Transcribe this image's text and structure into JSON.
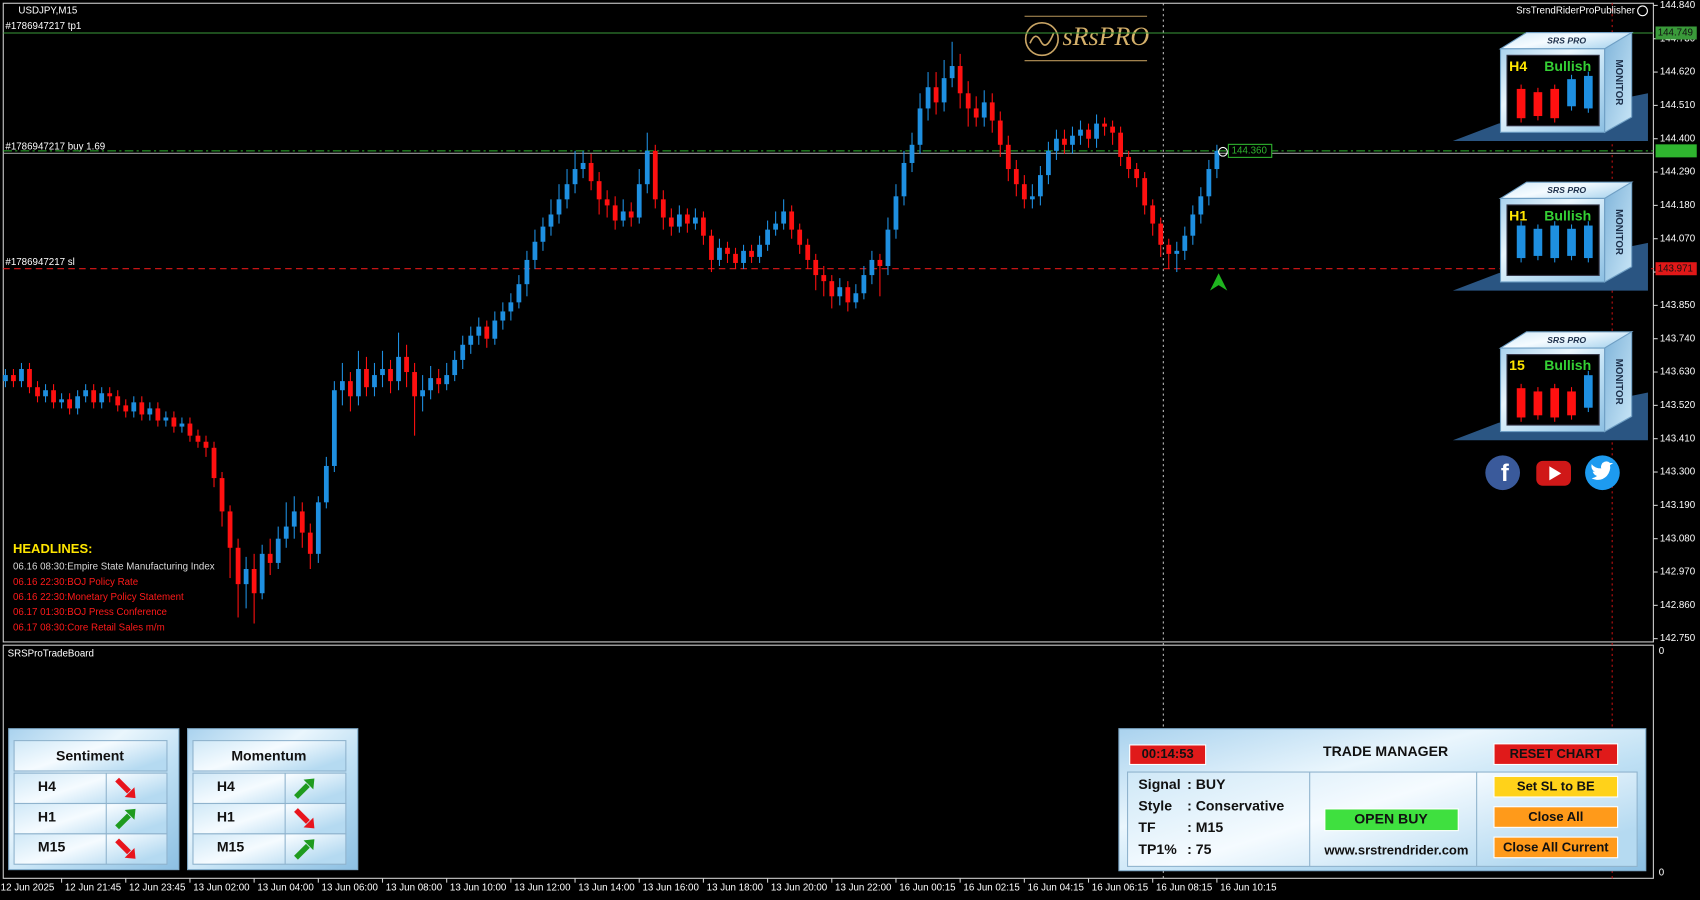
{
  "chart_data": {
    "type": "candlestick",
    "title": "USDJPY,M15",
    "colors": {
      "up": "#1e8fe0",
      "down": "#ff1010"
    },
    "ylim": [
      142.75,
      144.84
    ],
    "yticks": [
      {
        "value": 144.84,
        "label": "144.840"
      },
      {
        "value": 144.73,
        "label": "144.730"
      },
      {
        "value": 144.62,
        "label": "144.620"
      },
      {
        "value": 144.51,
        "label": "144.510"
      },
      {
        "value": 144.4,
        "label": "144.400"
      },
      {
        "value": 144.29,
        "label": "144.290"
      },
      {
        "value": 144.18,
        "label": "144.180"
      },
      {
        "value": 144.07,
        "label": "144.070"
      },
      {
        "value": 143.96,
        "label": "143.960"
      },
      {
        "value": 143.85,
        "label": "143.850"
      },
      {
        "value": 143.74,
        "label": "143.740"
      },
      {
        "value": 143.63,
        "label": "143.630"
      },
      {
        "value": 143.52,
        "label": "143.520"
      },
      {
        "value": 143.41,
        "label": "143.410"
      },
      {
        "value": 143.3,
        "label": "143.300"
      },
      {
        "value": 143.19,
        "label": "143.190"
      },
      {
        "value": 143.08,
        "label": "143.080"
      },
      {
        "value": 142.97,
        "label": "142.970"
      },
      {
        "value": 142.86,
        "label": "142.860"
      },
      {
        "value": 142.75,
        "label": "142.750"
      }
    ],
    "xticks": [
      {
        "value": -1,
        "label": "12 Jun 2025"
      },
      {
        "value": 7,
        "label": "12 Jun 21:45"
      },
      {
        "value": 15,
        "label": "12 Jun 23:45"
      },
      {
        "value": 23,
        "label": "13 Jun 02:00"
      },
      {
        "value": 31,
        "label": "13 Jun 04:00"
      },
      {
        "value": 39,
        "label": "13 Jun 06:00"
      },
      {
        "value": 47,
        "label": "13 Jun 08:00"
      },
      {
        "value": 55,
        "label": "13 Jun 10:00"
      },
      {
        "value": 63,
        "label": "13 Jun 12:00"
      },
      {
        "value": 71,
        "label": "13 Jun 14:00"
      },
      {
        "value": 79,
        "label": "13 Jun 16:00"
      },
      {
        "value": 87,
        "label": "13 Jun 18:00"
      },
      {
        "value": 95,
        "label": "13 Jun 20:00"
      },
      {
        "value": 103,
        "label": "13 Jun 22:00"
      },
      {
        "value": 111,
        "label": "16 Jun 00:15"
      },
      {
        "value": 119,
        "label": "16 Jun 02:15"
      },
      {
        "value": 127,
        "label": "16 Jun 04:15"
      },
      {
        "value": 135,
        "label": "16 Jun 06:15"
      },
      {
        "value": 143,
        "label": "16 Jun 08:15"
      },
      {
        "value": 151,
        "label": "16 Jun 10:15"
      }
    ],
    "hlines": [
      {
        "label": "#1786947217 tp1",
        "price": 144.749,
        "color": "#3a9a3a",
        "style": "solid",
        "price_tag": true
      },
      {
        "label": "#1786947217 buy 1.69",
        "price": 144.352,
        "color": "#9a9a9a",
        "style": "solid",
        "price_tag": false
      },
      {
        "label": "#1786947217 sl",
        "price": 143.971,
        "color": "#e01818",
        "style": "dashed",
        "price_tag": true
      }
    ],
    "bid": {
      "value": 144.36,
      "label": "144.360",
      "color": "#2fb52f"
    },
    "candles": [
      [
        143.6,
        143.64,
        143.58,
        143.62
      ],
      [
        143.62,
        143.64,
        143.58,
        143.6
      ],
      [
        143.6,
        143.66,
        143.58,
        143.64
      ],
      [
        143.64,
        143.66,
        143.56,
        143.58
      ],
      [
        143.58,
        143.6,
        143.53,
        143.55
      ],
      [
        143.55,
        143.59,
        143.53,
        143.57
      ],
      [
        143.57,
        143.59,
        143.51,
        143.53
      ],
      [
        143.53,
        143.56,
        143.51,
        143.54
      ],
      [
        143.54,
        143.56,
        143.49,
        143.51
      ],
      [
        143.51,
        143.57,
        143.49,
        143.55
      ],
      [
        143.55,
        143.59,
        143.53,
        143.57
      ],
      [
        143.57,
        143.59,
        143.51,
        143.53
      ],
      [
        143.53,
        143.58,
        143.51,
        143.56
      ],
      [
        143.56,
        143.58,
        143.53,
        143.55
      ],
      [
        143.55,
        143.57,
        143.5,
        143.52
      ],
      [
        143.52,
        143.54,
        143.48,
        143.5
      ],
      [
        143.5,
        143.55,
        143.48,
        143.53
      ],
      [
        143.53,
        143.55,
        143.47,
        143.49
      ],
      [
        143.49,
        143.53,
        143.47,
        143.51
      ],
      [
        143.51,
        143.53,
        143.45,
        143.47
      ],
      [
        143.47,
        143.5,
        143.45,
        143.48
      ],
      [
        143.48,
        143.5,
        143.43,
        143.45
      ],
      [
        143.45,
        143.48,
        143.43,
        143.46
      ],
      [
        143.46,
        143.48,
        143.4,
        143.42
      ],
      [
        143.42,
        143.44,
        143.38,
        143.4
      ],
      [
        143.4,
        143.42,
        143.35,
        143.38
      ],
      [
        143.38,
        143.4,
        143.25,
        143.28
      ],
      [
        143.28,
        143.3,
        143.12,
        143.17
      ],
      [
        143.17,
        143.19,
        142.95,
        143.05
      ],
      [
        143.05,
        143.08,
        142.82,
        142.93
      ],
      [
        142.93,
        143.02,
        142.85,
        142.98
      ],
      [
        142.98,
        143.03,
        142.8,
        142.9
      ],
      [
        142.9,
        143.06,
        142.88,
        143.03
      ],
      [
        143.03,
        143.08,
        142.96,
        143.0
      ],
      [
        143.0,
        143.12,
        142.98,
        143.08
      ],
      [
        143.08,
        143.2,
        143.05,
        143.12
      ],
      [
        143.12,
        143.22,
        143.08,
        143.17
      ],
      [
        143.17,
        143.2,
        143.05,
        143.1
      ],
      [
        143.1,
        143.13,
        142.98,
        143.03
      ],
      [
        143.03,
        143.22,
        143.0,
        143.2
      ],
      [
        143.2,
        143.35,
        143.18,
        143.32
      ],
      [
        143.32,
        143.6,
        143.3,
        143.57
      ],
      [
        143.57,
        143.66,
        143.52,
        143.6
      ],
      [
        143.6,
        143.63,
        143.5,
        143.55
      ],
      [
        143.55,
        143.7,
        143.52,
        143.64
      ],
      [
        143.64,
        143.68,
        143.55,
        143.58
      ],
      [
        143.58,
        143.66,
        143.55,
        143.62
      ],
      [
        143.62,
        143.7,
        143.58,
        143.64
      ],
      [
        143.64,
        143.67,
        143.56,
        143.6
      ],
      [
        143.6,
        143.76,
        143.57,
        143.68
      ],
      [
        143.68,
        143.72,
        143.58,
        143.63
      ],
      [
        143.63,
        143.66,
        143.42,
        143.55
      ],
      [
        143.55,
        143.62,
        143.5,
        143.57
      ],
      [
        143.57,
        143.65,
        143.54,
        143.61
      ],
      [
        143.61,
        143.64,
        143.56,
        143.59
      ],
      [
        143.59,
        143.66,
        143.57,
        143.62
      ],
      [
        143.62,
        143.7,
        143.6,
        143.67
      ],
      [
        143.67,
        143.75,
        143.64,
        143.72
      ],
      [
        143.72,
        143.78,
        143.69,
        143.75
      ],
      [
        143.75,
        143.81,
        143.72,
        143.78
      ],
      [
        143.78,
        143.8,
        143.71,
        143.74
      ],
      [
        143.74,
        143.83,
        143.72,
        143.8
      ],
      [
        143.8,
        143.86,
        143.77,
        143.83
      ],
      [
        143.83,
        143.89,
        143.8,
        143.86
      ],
      [
        143.86,
        143.95,
        143.84,
        143.92
      ],
      [
        143.92,
        144.03,
        143.88,
        144.0
      ],
      [
        144.0,
        144.1,
        143.97,
        144.06
      ],
      [
        144.06,
        144.14,
        144.03,
        144.11
      ],
      [
        144.11,
        144.2,
        144.08,
        144.15
      ],
      [
        144.15,
        144.25,
        144.12,
        144.2
      ],
      [
        144.2,
        144.3,
        144.17,
        144.25
      ],
      [
        144.25,
        144.36,
        144.22,
        144.3
      ],
      [
        144.3,
        144.36,
        144.27,
        144.32
      ],
      [
        144.32,
        144.35,
        144.23,
        144.26
      ],
      [
        144.26,
        144.29,
        144.15,
        144.2
      ],
      [
        144.2,
        144.23,
        144.14,
        144.18
      ],
      [
        144.18,
        144.21,
        144.1,
        144.13
      ],
      [
        144.13,
        144.2,
        144.11,
        144.16
      ],
      [
        144.16,
        144.19,
        144.11,
        144.14
      ],
      [
        144.14,
        144.3,
        144.12,
        144.25
      ],
      [
        144.25,
        144.42,
        144.22,
        144.36
      ],
      [
        144.36,
        144.38,
        144.17,
        144.2
      ],
      [
        144.2,
        144.23,
        144.1,
        144.14
      ],
      [
        144.14,
        144.17,
        144.08,
        144.11
      ],
      [
        144.11,
        144.18,
        144.09,
        144.15
      ],
      [
        144.15,
        144.17,
        144.09,
        144.12
      ],
      [
        144.12,
        144.17,
        144.1,
        144.14
      ],
      [
        144.14,
        144.16,
        144.05,
        144.08
      ],
      [
        144.08,
        144.1,
        143.96,
        144.0
      ],
      [
        144.0,
        144.07,
        143.98,
        144.04
      ],
      [
        144.04,
        144.06,
        143.99,
        144.02
      ],
      [
        144.02,
        144.04,
        143.97,
        143.99
      ],
      [
        143.99,
        144.05,
        143.97,
        144.03
      ],
      [
        144.03,
        144.05,
        143.99,
        144.01
      ],
      [
        144.01,
        144.08,
        143.99,
        144.05
      ],
      [
        144.05,
        144.13,
        144.03,
        144.1
      ],
      [
        144.1,
        144.16,
        144.08,
        144.12
      ],
      [
        144.12,
        144.2,
        144.1,
        144.16
      ],
      [
        144.16,
        144.18,
        144.07,
        144.1
      ],
      [
        144.1,
        144.12,
        144.02,
        144.05
      ],
      [
        144.05,
        144.07,
        143.97,
        144.0
      ],
      [
        144.0,
        144.02,
        143.9,
        143.95
      ],
      [
        143.95,
        143.98,
        143.88,
        143.93
      ],
      [
        143.93,
        143.95,
        143.84,
        143.88
      ],
      [
        143.88,
        143.94,
        143.85,
        143.91
      ],
      [
        143.91,
        143.93,
        143.83,
        143.86
      ],
      [
        143.86,
        143.92,
        143.84,
        143.89
      ],
      [
        143.89,
        143.98,
        143.87,
        143.95
      ],
      [
        143.95,
        144.03,
        143.92,
        144.0
      ],
      [
        144.0,
        144.02,
        143.88,
        143.98
      ],
      [
        143.98,
        144.14,
        143.95,
        144.1
      ],
      [
        144.1,
        144.25,
        144.07,
        144.21
      ],
      [
        144.21,
        144.36,
        144.18,
        144.32
      ],
      [
        144.32,
        144.42,
        144.29,
        144.38
      ],
      [
        144.38,
        144.55,
        144.35,
        144.5
      ],
      [
        144.5,
        144.62,
        144.46,
        144.57
      ],
      [
        144.57,
        144.62,
        144.48,
        144.52
      ],
      [
        144.52,
        144.66,
        144.49,
        144.6
      ],
      [
        144.6,
        144.72,
        144.57,
        144.64
      ],
      [
        144.64,
        144.68,
        144.5,
        144.55
      ],
      [
        144.55,
        144.59,
        144.44,
        144.5
      ],
      [
        144.5,
        144.54,
        144.44,
        144.47
      ],
      [
        144.47,
        144.56,
        144.44,
        144.52
      ],
      [
        144.52,
        144.55,
        144.42,
        144.46
      ],
      [
        144.46,
        144.49,
        144.34,
        144.38
      ],
      [
        144.38,
        144.41,
        144.26,
        144.3
      ],
      [
        144.3,
        144.33,
        144.21,
        144.25
      ],
      [
        144.25,
        144.28,
        144.17,
        144.2
      ],
      [
        144.2,
        144.25,
        144.17,
        144.21
      ],
      [
        144.21,
        144.31,
        144.18,
        144.28
      ],
      [
        144.28,
        144.39,
        144.25,
        144.36
      ],
      [
        144.36,
        144.43,
        144.33,
        144.4
      ],
      [
        144.4,
        144.43,
        144.35,
        144.38
      ],
      [
        144.38,
        144.44,
        144.35,
        144.41
      ],
      [
        144.41,
        144.46,
        144.38,
        144.43
      ],
      [
        144.43,
        144.45,
        144.37,
        144.4
      ],
      [
        144.4,
        144.48,
        144.37,
        144.45
      ],
      [
        144.45,
        144.47,
        144.41,
        144.44
      ],
      [
        144.44,
        144.46,
        144.38,
        144.42
      ],
      [
        144.42,
        144.44,
        144.31,
        144.34
      ],
      [
        144.34,
        144.36,
        144.27,
        144.3
      ],
      [
        144.3,
        144.32,
        144.24,
        144.27
      ],
      [
        144.27,
        144.29,
        144.15,
        144.18
      ],
      [
        144.18,
        144.2,
        144.08,
        144.12
      ],
      [
        144.12,
        144.14,
        144.01,
        144.05
      ],
      [
        144.05,
        144.07,
        143.97,
        144.02
      ],
      [
        144.02,
        144.06,
        143.96,
        144.03
      ],
      [
        144.03,
        144.11,
        144.0,
        144.08
      ],
      [
        144.08,
        144.18,
        144.05,
        144.15
      ],
      [
        144.15,
        144.24,
        144.12,
        144.21
      ],
      [
        144.21,
        144.33,
        144.18,
        144.3
      ],
      [
        144.3,
        144.38,
        144.27,
        144.36
      ]
    ]
  },
  "indicator_name": "SrsTrendRiderProPublisher",
  "logo": "sRsPRO",
  "headlines": {
    "title": "HEADLINES:",
    "items": [
      {
        "text": "06.16 08:30:Empire State Manufacturing Index",
        "color": "#d8d8d8"
      },
      {
        "text": "06.16 22:30:BOJ Policy Rate",
        "color": "#ff1a1a"
      },
      {
        "text": "06.16 22:30:Monetary Policy Statement",
        "color": "#ff1a1a"
      },
      {
        "text": "06.17 01:30:BOJ Press Conference",
        "color": "#ff1a1a"
      },
      {
        "text": "06.17 08:30:Core Retail Sales m/m",
        "color": "#ff1a1a"
      }
    ]
  },
  "monitors": [
    {
      "brand": "SRS PRO",
      "side": "MONITOR",
      "timeframe": "H4",
      "trend": "Bullish",
      "bars": [
        "down",
        "down",
        "down",
        "up",
        "up"
      ]
    },
    {
      "brand": "SRS PRO",
      "side": "MONITOR",
      "timeframe": "H1",
      "trend": "Bullish",
      "bars": [
        "up",
        "up",
        "up",
        "up",
        "up"
      ]
    },
    {
      "brand": "SRS PRO",
      "side": "MONITOR",
      "timeframe": "15",
      "trend": "Bullish",
      "bars": [
        "down",
        "down",
        "down",
        "down",
        "up"
      ]
    }
  ],
  "subwindow": {
    "name": "SRSProTradeBoard",
    "axis_labels": [
      0,
      0
    ]
  },
  "sentiment": {
    "title": "Sentiment",
    "rows": [
      {
        "label": "H4",
        "direction": "down"
      },
      {
        "label": "H1",
        "direction": "up"
      },
      {
        "label": "M15",
        "direction": "down"
      }
    ]
  },
  "momentum": {
    "title": "Momentum",
    "rows": [
      {
        "label": "H4",
        "direction": "up"
      },
      {
        "label": "H1",
        "direction": "down"
      },
      {
        "label": "M15",
        "direction": "up"
      }
    ]
  },
  "trade_manager": {
    "timer": "00:14:53",
    "title": "TRADE MANAGER",
    "reset": "RESET CHART",
    "fields": [
      {
        "label": "Signal",
        "value": ": BUY"
      },
      {
        "label": "Style",
        "value": ": Conservative"
      },
      {
        "label": "TF",
        "value": ": M15"
      },
      {
        "label": "TP1%",
        "value": ": 75"
      }
    ],
    "open_buy": "OPEN BUY",
    "website": "www.srstrendrider.com",
    "buttons": [
      {
        "text": "Set SL to BE",
        "color": "#ffd21a"
      },
      {
        "text": "Close All",
        "color": "#ff9a1a"
      },
      {
        "text": "Close All Current",
        "color": "#ff9a1a"
      }
    ]
  }
}
